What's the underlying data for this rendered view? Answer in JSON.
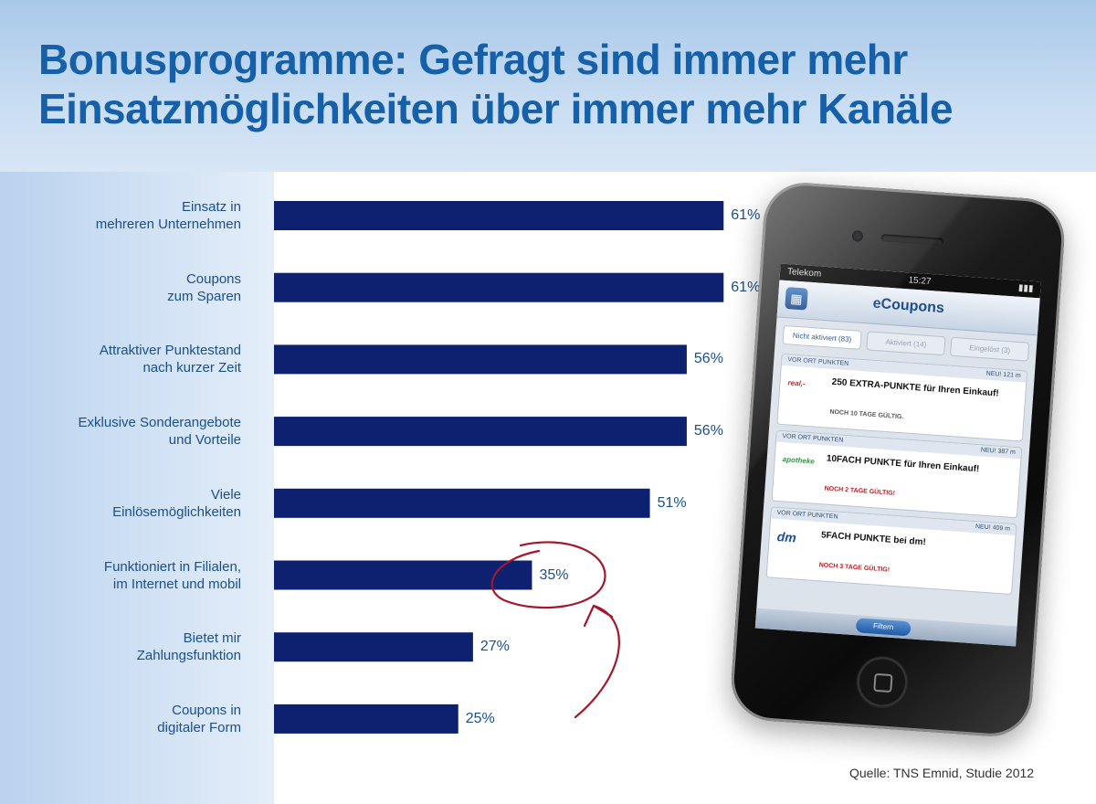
{
  "title_lines": [
    "Bonusprogramme: Gefragt sind immer mehr",
    "Einsatzmöglichkeiten über immer mehr Kanäle"
  ],
  "source": "Quelle: TNS Emnid, Studie 2012",
  "colors": {
    "bar": "#0d2170",
    "title": "#1560a8",
    "label": "#1a4f8c",
    "annotation": "#a3182e"
  },
  "chart_data": {
    "type": "bar",
    "orientation": "horizontal",
    "title": "Bonusprogramme: Gefragt sind immer mehr Einsatzmöglichkeiten über immer mehr Kanäle",
    "categories": [
      [
        "Einsatz in",
        "mehreren Unternehmen"
      ],
      [
        "Coupons",
        "zum Sparen"
      ],
      [
        "Attraktiver Punktestand",
        "nach kurzer Zeit"
      ],
      [
        "Exklusive Sonderangebote",
        "und Vorteile"
      ],
      [
        "Viele",
        "Einlösemöglichkeiten"
      ],
      [
        "Funktioniert in Filialen,",
        "im Internet und mobil"
      ],
      [
        "Bietet mir",
        "Zahlungsfunktion"
      ],
      [
        "Coupons in",
        "digitaler Form"
      ]
    ],
    "values": [
      61,
      61,
      56,
      56,
      51,
      35,
      27,
      25
    ],
    "value_labels": [
      "61%",
      "61%",
      "56%",
      "56%",
      "51%",
      "35%",
      "27%",
      "25%"
    ],
    "unit": "%",
    "xlim": [
      0,
      100
    ],
    "highlighted_index": 5,
    "grid": false,
    "legend": "none"
  },
  "phone": {
    "carrier": "Telekom",
    "time": "15:27",
    "app_title": "eCoupons",
    "tabs": [
      "Nicht aktiviert (83)",
      "Aktiviert (14)",
      "Eingelöst (3)"
    ],
    "coupons": [
      {
        "band": "VOR ORT PUNKTEN",
        "badge": "NEU!",
        "dist": "121 m",
        "logo": "real,-",
        "logo_color": "#d4101a",
        "text": "250 EXTRA-PUNKTE für Ihren Einkauf!",
        "valid": "NOCH 10 TAGE GÜLTIG.",
        "valid_color": "#555555"
      },
      {
        "band": "VOR ORT PUNKTEN",
        "badge": "NEU!",
        "dist": "387 m",
        "logo": "apotheke",
        "logo_color": "#2e9a3c",
        "text": "10FACH PUNKTE für Ihren Einkauf!",
        "valid": "NOCH 2 TAGE GÜLTIG!",
        "valid_color": "#c8141e"
      },
      {
        "band": "VOR ORT PUNKTEN",
        "badge": "NEU!",
        "dist": "409 m",
        "logo": "dm",
        "logo_color": "#1d4d9e",
        "text": "5FACH PUNKTE bei dm!",
        "valid": "NOCH 3 TAGE GÜLTIG!",
        "valid_color": "#c8141e"
      }
    ],
    "filter_label": "Filtern"
  }
}
